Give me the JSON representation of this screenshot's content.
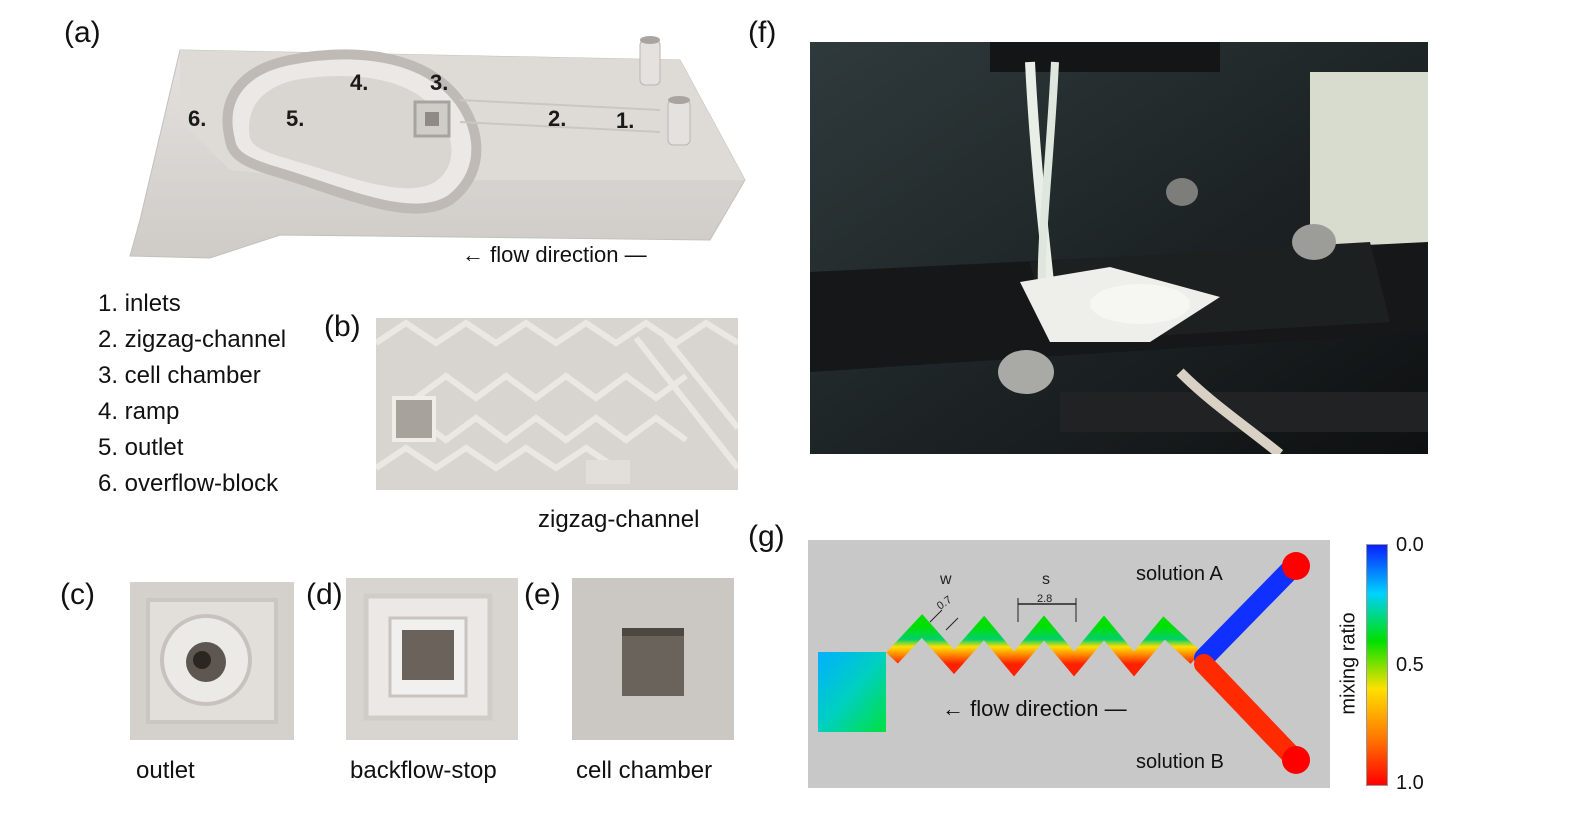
{
  "panel_labels": {
    "a": "(a)",
    "b": "(b)",
    "c": "(c)",
    "d": "(d)",
    "e": "(e)",
    "f": "(f)",
    "g": "(g)"
  },
  "panel_a": {
    "numbers": [
      "1.",
      "2.",
      "3.",
      "4.",
      "5.",
      "6."
    ],
    "flow_direction": "flow direction"
  },
  "legend": [
    "1. inlets",
    "2. zigzag-channel",
    "3. cell chamber",
    "4. ramp",
    "5. outlet",
    "6. overflow-block"
  ],
  "captions": {
    "b": "zigzag-channel",
    "c": "outlet",
    "d": "backflow-stop",
    "e": "cell chamber"
  },
  "panel_g": {
    "w_label": "w",
    "s_label": "s",
    "w_value": "0.7",
    "s_value": "2.8",
    "solution_a": "solution A",
    "solution_b": "solution B",
    "flow_direction": "flow direction",
    "colorbar_title": "mixing ratio",
    "colorbar_ticks": [
      "0.0",
      "0.5",
      "1.0"
    ],
    "colorbar_colors": [
      "#0a1fff",
      "#00d0ff",
      "#00e000",
      "#ffe000",
      "#ff7a00",
      "#ff0000"
    ]
  }
}
